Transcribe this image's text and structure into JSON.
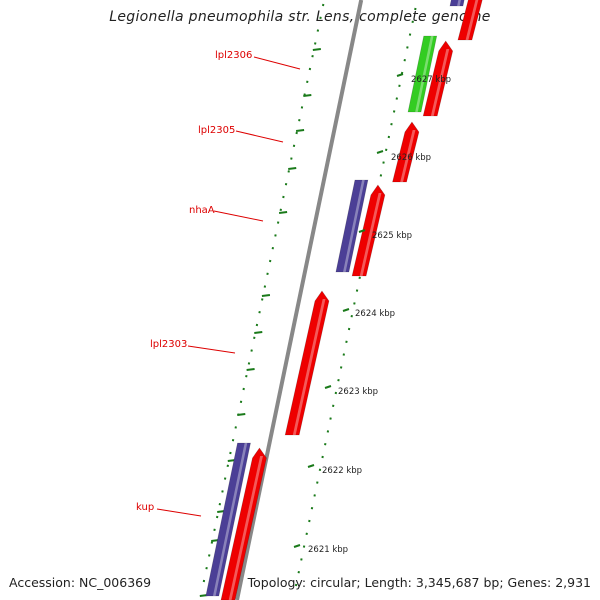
{
  "title": "Legionella pneumophila str. Lens, complete genome",
  "footer": {
    "accession": "Accession: NC_006369",
    "summary": "Topology: circular; Length: 3,345,687 bp; Genes: 2,931"
  },
  "colors": {
    "gene_label": "#dd0000",
    "forward_cds": "#ee0000",
    "reverse_cds": "#4b3f96",
    "green_feature": "#33cc22",
    "backbone": "#888888",
    "tick": "#1a7a1a"
  },
  "gene_labels": [
    "lpl2306",
    "lpl2305",
    "nhaA",
    "lpl2303",
    "kup"
  ],
  "scale_labels": [
    "2627 kbp",
    "2626 kbp",
    "2625 kbp",
    "2624 kbp",
    "2623 kbp",
    "2622 kbp",
    "2621 kbp"
  ]
}
